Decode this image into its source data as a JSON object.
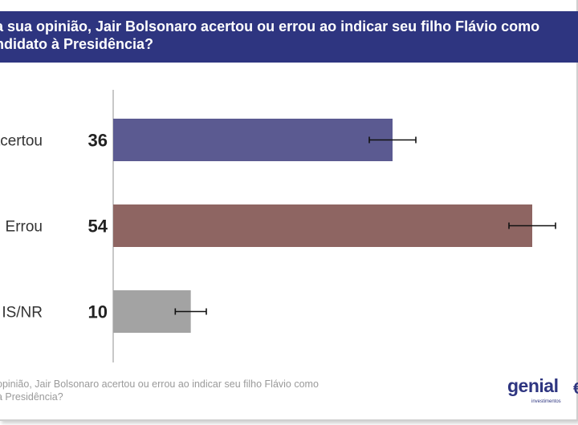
{
  "title": "a sua opinião, Jair Bolsonaro acertou ou errou ao indicar seu filho Flávio como\nndidato à Presidência?",
  "footer_note": "opinião, Jair Bolsonaro acertou ou errou ao indicar seu filho Flávio como\nà Presidência?",
  "logo": {
    "word": "genial",
    "sub": "investimentos"
  },
  "colors": {
    "header": "#2e3580",
    "acertou": "#5b5a91",
    "errou": "#8e6562",
    "nsnr": "#a3a3a3"
  },
  "chart_data": {
    "type": "bar",
    "orientation": "horizontal",
    "categories": [
      "acertou",
      "Errou",
      "IS/NR"
    ],
    "values": [
      36,
      54,
      10
    ],
    "error_bars": [
      3,
      3,
      2
    ],
    "colors": [
      "#5b5a91",
      "#8e6562",
      "#a3a3a3"
    ],
    "xlim": [
      0,
      56
    ],
    "title": "a sua opinião, Jair Bolsonaro acertou ou errou ao indicar seu filho Flávio como ndidato à Presidência?",
    "xlabel": "",
    "ylabel": ""
  }
}
